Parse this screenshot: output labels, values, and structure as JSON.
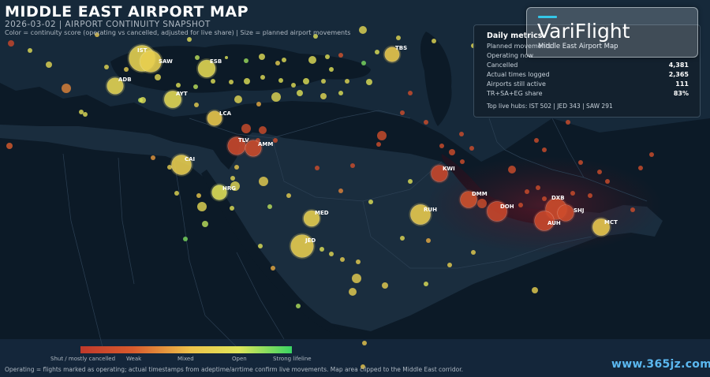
{
  "header": {
    "title": "MIDDLE EAST AIRPORT MAP",
    "subtitle": "2026-03-02  |  AIRPORT CONTINUITY SNAPSHOT",
    "legend_line": "Color = continuity score (operating vs cancelled, adjusted for live share)  |  Size = planned airport movements"
  },
  "panel": {
    "title": "Daily metrics",
    "metrics": [
      {
        "label": "Planned movements",
        "value": ""
      },
      {
        "label": "Operating now",
        "value": ""
      },
      {
        "label": "Cancelled",
        "value": "4,381"
      },
      {
        "label": "Actual times logged",
        "value": "2,365"
      },
      {
        "label": "Airports still active",
        "value": "111"
      },
      {
        "label": "TR+SA+EG share",
        "value": "83%"
      }
    ],
    "hubs": "Top live hubs: IST 502  |  JED 343  |  SAW 291"
  },
  "brand": {
    "name": "VariFlight",
    "tagline": "Middle East Airport Map",
    "accent": "#34c6e8"
  },
  "scale": {
    "labels": [
      "Shut / mostly cancelled",
      "Weak",
      "Mixed",
      "Open",
      "Strong lifeline"
    ],
    "colors": [
      "#c0392b",
      "#d95b2d",
      "#eec24a",
      "#dfe65a",
      "#3ad463"
    ]
  },
  "footer": "Operating = flights marked as operating; actual timestamps from adeptime/arrtime confirm live movements. Map area clipped to the Middle East corridor.",
  "watermark": "www.365jz.com",
  "airports": [
    {
      "code": "IST",
      "score": 0.62,
      "movements": 900
    },
    {
      "code": "SAW",
      "score": 0.6,
      "movements": 520
    },
    {
      "code": "ESB",
      "score": 0.66,
      "movements": 280
    },
    {
      "code": "ADB",
      "score": 0.64,
      "movements": 230
    },
    {
      "code": "AYT",
      "score": 0.66,
      "movements": 260
    },
    {
      "code": "TBS",
      "score": 0.55,
      "movements": 160
    },
    {
      "code": "LCA",
      "score": 0.55,
      "movements": 160
    },
    {
      "code": "TLV",
      "score": 0.12,
      "movements": 300
    },
    {
      "code": "AMM",
      "score": 0.14,
      "movements": 220
    },
    {
      "code": "CAI",
      "score": 0.58,
      "movements": 420
    },
    {
      "code": "HRG",
      "score": 0.72,
      "movements": 170
    },
    {
      "code": "KWI",
      "score": 0.1,
      "movements": 240
    },
    {
      "code": "DMM",
      "score": 0.18,
      "movements": 240
    },
    {
      "code": "RUH",
      "score": 0.56,
      "movements": 430
    },
    {
      "code": "MED",
      "score": 0.6,
      "movements": 210
    },
    {
      "code": "DOH",
      "score": 0.1,
      "movements": 420
    },
    {
      "code": "DXB",
      "score": 0.15,
      "movements": 500
    },
    {
      "code": "SHJ",
      "score": 0.14,
      "movements": 230
    },
    {
      "code": "AUH",
      "score": 0.12,
      "movements": 400
    },
    {
      "code": "MCT",
      "score": 0.55,
      "movements": 260
    },
    {
      "code": "JED",
      "score": 0.58,
      "movements": 620
    }
  ]
}
